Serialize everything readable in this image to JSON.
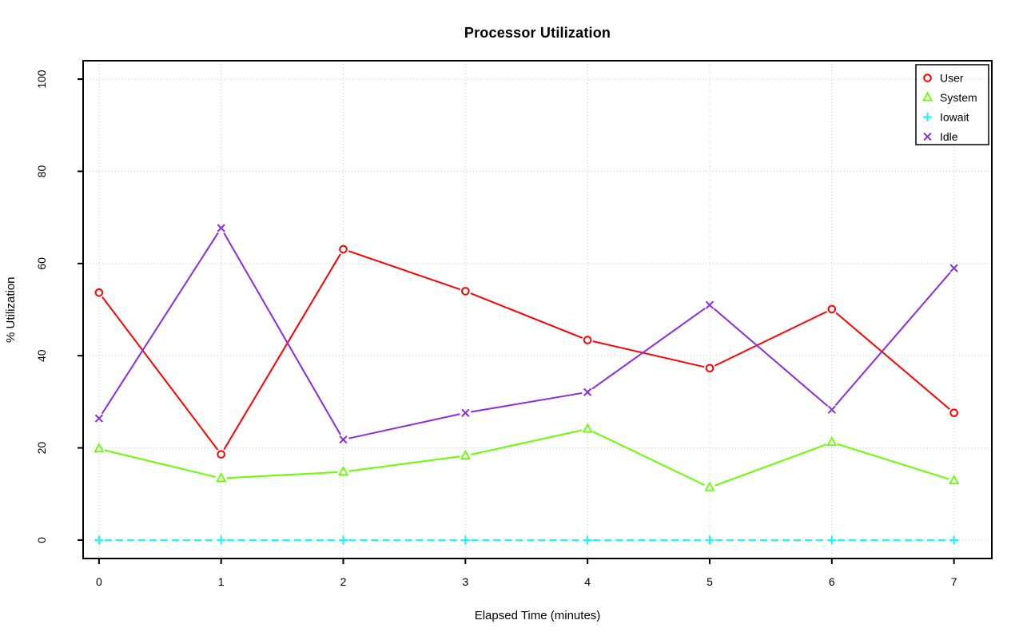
{
  "chart_data": {
    "type": "line",
    "title": "Processor Utilization",
    "xlabel": "Elapsed Time (minutes)",
    "ylabel": "% Utilization",
    "x": [
      0,
      1,
      2,
      3,
      4,
      5,
      6,
      7
    ],
    "x_ticks": [
      "0",
      "1",
      "2",
      "3",
      "4",
      "5",
      "6",
      "7"
    ],
    "y_ticks": [
      "0",
      "20",
      "40",
      "60",
      "80",
      "100"
    ],
    "y_tick_values": [
      0,
      20,
      40,
      60,
      80,
      100
    ],
    "xlim": [
      -0.13,
      7.31
    ],
    "ylim": [
      -4,
      104
    ],
    "grid": true,
    "grid_style": "dotted",
    "legend_position": "top-right",
    "series": [
      {
        "name": "User",
        "color": "#FF0000",
        "marker": "circle",
        "line_style": "solid",
        "values": [
          53.7,
          18.6,
          63.1,
          54.0,
          43.4,
          37.3,
          50.1,
          27.6
        ]
      },
      {
        "name": "System",
        "color": "#66FF00",
        "marker": "triangle",
        "line_style": "solid",
        "values": [
          19.8,
          13.4,
          14.8,
          18.3,
          24.1,
          11.4,
          21.2,
          12.9
        ]
      },
      {
        "name": "Iowait",
        "color": "#00FFFF",
        "marker": "plus",
        "line_style": "dashed",
        "values": [
          0,
          0,
          0,
          0,
          0,
          0,
          0,
          0
        ]
      },
      {
        "name": "Idle",
        "color": "#8A2BE2",
        "marker": "x",
        "line_style": "solid",
        "values": [
          26.4,
          67.7,
          21.8,
          27.6,
          32.1,
          51.0,
          28.3,
          59.0
        ]
      }
    ],
    "colors": {
      "background": "#FFFFFF",
      "grid": "#C9C9C9",
      "axis": "#000000",
      "text": "#000000"
    }
  }
}
